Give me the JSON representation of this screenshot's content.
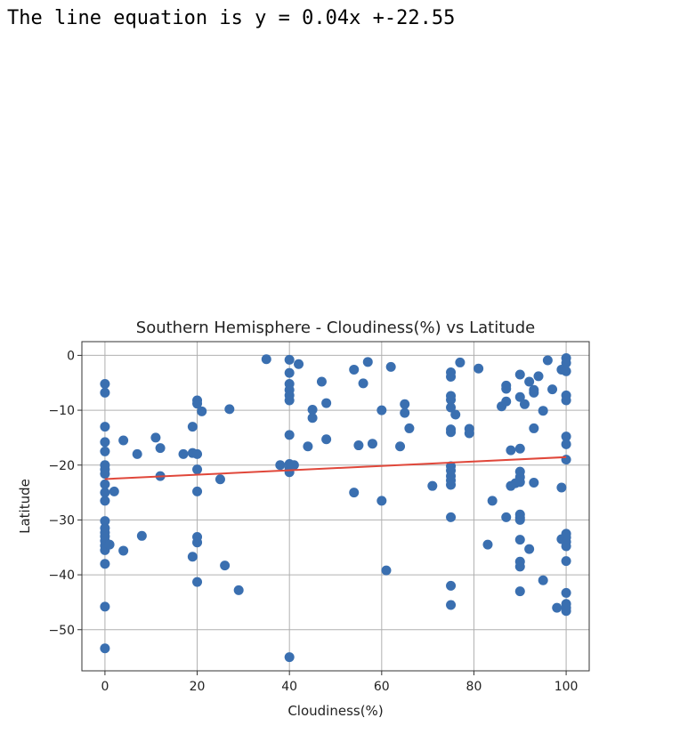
{
  "output_text": "The line equation is y = 0.04x +-22.55",
  "chart_data": {
    "type": "scatter",
    "title": "Southern Hemisphere - Cloudiness(%) vs Latitude",
    "xlabel": "Cloudiness(%)",
    "ylabel": "Latitude",
    "xlim": [
      -5,
      105
    ],
    "ylim": [
      -57.5,
      2.5
    ],
    "xticks": [
      0,
      20,
      40,
      60,
      80,
      100
    ],
    "yticks": [
      0,
      -10,
      -20,
      -30,
      -40,
      -50
    ],
    "xtick_labels": [
      "0",
      "20",
      "40",
      "60",
      "80",
      "100"
    ],
    "ytick_labels": [
      "0",
      "−10",
      "−20",
      "−30",
      "−40",
      "−50"
    ],
    "grid": true,
    "point_color": "#3a6fb0",
    "line_color": "#e0473a",
    "regression": {
      "slope": 0.04,
      "intercept": -22.55
    },
    "points": [
      [
        0,
        -5.2
      ],
      [
        0,
        -6.8
      ],
      [
        0,
        -13
      ],
      [
        0,
        -15.8
      ],
      [
        0,
        -17.5
      ],
      [
        0,
        -20
      ],
      [
        0,
        -20.8
      ],
      [
        0,
        -21.6
      ],
      [
        0,
        -23.5
      ],
      [
        0,
        -25
      ],
      [
        0,
        -26.5
      ],
      [
        0,
        -30.2
      ],
      [
        0,
        -31.5
      ],
      [
        0,
        -32.3
      ],
      [
        0,
        -33
      ],
      [
        0,
        -33.8
      ],
      [
        0,
        -34.7
      ],
      [
        0,
        -35.5
      ],
      [
        0,
        -38
      ],
      [
        0,
        -45.8
      ],
      [
        0,
        -53.4
      ],
      [
        1,
        -34.5
      ],
      [
        2,
        -24.8
      ],
      [
        4,
        -15.5
      ],
      [
        4,
        -35.6
      ],
      [
        7,
        -18
      ],
      [
        8,
        -32.9
      ],
      [
        11,
        -15
      ],
      [
        12,
        -16.9
      ],
      [
        12,
        -22
      ],
      [
        17,
        -18
      ],
      [
        19,
        -13
      ],
      [
        19,
        -17.8
      ],
      [
        19,
        -36.7
      ],
      [
        20,
        -8.2
      ],
      [
        20,
        -8.8
      ],
      [
        20,
        -18
      ],
      [
        20,
        -20.8
      ],
      [
        20,
        -24.8
      ],
      [
        20,
        -33.1
      ],
      [
        20,
        -34.1
      ],
      [
        20,
        -41.3
      ],
      [
        21,
        -10.2
      ],
      [
        25,
        -22.6
      ],
      [
        26,
        -38.3
      ],
      [
        27,
        -9.8
      ],
      [
        29,
        -42.8
      ],
      [
        35,
        -0.7
      ],
      [
        38,
        -20
      ],
      [
        40,
        -0.8
      ],
      [
        40,
        -3.2
      ],
      [
        40,
        -5.2
      ],
      [
        40,
        -6.3
      ],
      [
        40,
        -7.3
      ],
      [
        40,
        -8.2
      ],
      [
        40,
        -14.5
      ],
      [
        40,
        -19.8
      ],
      [
        40,
        -20.6
      ],
      [
        40,
        -21.3
      ],
      [
        40,
        -55
      ],
      [
        41,
        -20
      ],
      [
        42,
        -1.6
      ],
      [
        44,
        -16.6
      ],
      [
        45,
        -9.9
      ],
      [
        45,
        -11.4
      ],
      [
        47,
        -4.8
      ],
      [
        48,
        -8.7
      ],
      [
        48,
        -15.3
      ],
      [
        54,
        -2.6
      ],
      [
        54,
        -25
      ],
      [
        55,
        -16.4
      ],
      [
        56,
        -5.1
      ],
      [
        57,
        -1.2
      ],
      [
        58,
        -16.1
      ],
      [
        60,
        -10
      ],
      [
        60,
        -26.5
      ],
      [
        61,
        -39.2
      ],
      [
        62,
        -2.1
      ],
      [
        64,
        -16.6
      ],
      [
        65,
        -8.9
      ],
      [
        65,
        -10.5
      ],
      [
        66,
        -13.3
      ],
      [
        71,
        -23.8
      ],
      [
        75,
        -3.1
      ],
      [
        75,
        -3.9
      ],
      [
        75,
        -7.4
      ],
      [
        75,
        -8.1
      ],
      [
        75,
        -9.5
      ],
      [
        75,
        -13.5
      ],
      [
        75,
        -14
      ],
      [
        75,
        -20.2
      ],
      [
        75,
        -21
      ],
      [
        75,
        -22
      ],
      [
        75,
        -22.8
      ],
      [
        75,
        -23.6
      ],
      [
        75,
        -29.5
      ],
      [
        75,
        -42
      ],
      [
        75,
        -45.5
      ],
      [
        76,
        -10.8
      ],
      [
        77,
        -1.3
      ],
      [
        79,
        -13.4
      ],
      [
        79,
        -14.2
      ],
      [
        81,
        -2.4
      ],
      [
        83,
        -34.5
      ],
      [
        84,
        -26.5
      ],
      [
        86,
        -9.3
      ],
      [
        87,
        -5.5
      ],
      [
        87,
        -6.1
      ],
      [
        87,
        -8.4
      ],
      [
        87,
        -29.5
      ],
      [
        88,
        -17.3
      ],
      [
        88,
        -23.8
      ],
      [
        89,
        -23.3
      ],
      [
        90,
        -3.5
      ],
      [
        90,
        -7.6
      ],
      [
        90,
        -17
      ],
      [
        90,
        -21.2
      ],
      [
        90,
        -22.2
      ],
      [
        90,
        -23.1
      ],
      [
        90,
        -29
      ],
      [
        90,
        -29.6
      ],
      [
        90,
        -30
      ],
      [
        90,
        -33.6
      ],
      [
        90,
        -37.6
      ],
      [
        90,
        -38.5
      ],
      [
        90,
        -43
      ],
      [
        91,
        -8.9
      ],
      [
        92,
        -4.8
      ],
      [
        92,
        -35.3
      ],
      [
        93,
        -6.3
      ],
      [
        93,
        -6.8
      ],
      [
        93,
        -13.3
      ],
      [
        93,
        -23.2
      ],
      [
        94,
        -3.8
      ],
      [
        95,
        -10.1
      ],
      [
        95,
        -41
      ],
      [
        96,
        -0.9
      ],
      [
        97,
        -6.2
      ],
      [
        98,
        -46
      ],
      [
        99,
        -2.6
      ],
      [
        99,
        -24.1
      ],
      [
        99,
        -33.5
      ],
      [
        100,
        -0.5
      ],
      [
        100,
        -1.4
      ],
      [
        100,
        -2.9
      ],
      [
        100,
        -7.3
      ],
      [
        100,
        -8.2
      ],
      [
        100,
        -14.8
      ],
      [
        100,
        -16.2
      ],
      [
        100,
        -19
      ],
      [
        100,
        -32.5
      ],
      [
        100,
        -33.2
      ],
      [
        100,
        -34
      ],
      [
        100,
        -34.8
      ],
      [
        100,
        -37.5
      ],
      [
        100,
        -43.3
      ],
      [
        100,
        -45.3
      ],
      [
        100,
        -46
      ],
      [
        100,
        -46.6
      ]
    ]
  }
}
